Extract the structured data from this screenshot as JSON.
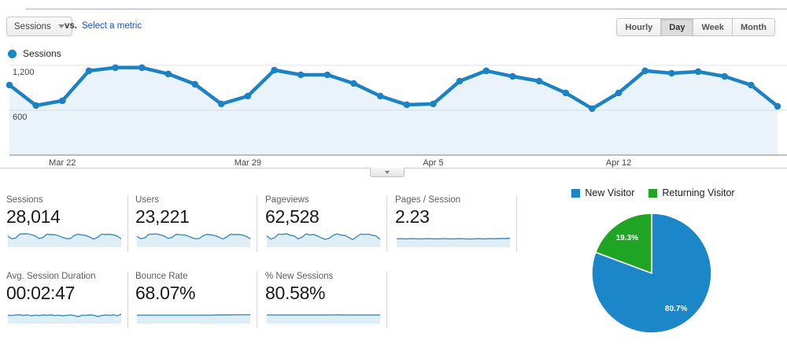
{
  "controls": {
    "metric_selector_value": "Sessions",
    "vs_label": "vs.",
    "select_metric_label": "Select a metric",
    "granularity": [
      "Hourly",
      "Day",
      "Week",
      "Month"
    ],
    "granularity_selected": "Day"
  },
  "legend": {
    "series_label": "Sessions"
  },
  "colors": {
    "line_blue": "#1d82c3",
    "area_fill": "#e9f3f9",
    "spark_line": "#3d8cbb",
    "spark_fill": "#dfedf7",
    "pie_blue": "#1b86c8",
    "pie_green": "#1fa523",
    "grid_light": "#e3e3e3",
    "grid_mid": "#cfdfeb",
    "axis_line": "#808080"
  },
  "chart_data": [
    {
      "type": "line",
      "title": "Sessions over time",
      "series_name": "Sessions",
      "x": [
        "Mar 20",
        "Mar 21",
        "Mar 22",
        "Mar 23",
        "Mar 24",
        "Mar 25",
        "Mar 26",
        "Mar 27",
        "Mar 28",
        "Mar 29",
        "Mar 30",
        "Mar 31",
        "Apr 1",
        "Apr 2",
        "Apr 3",
        "Apr 4",
        "Apr 5",
        "Apr 6",
        "Apr 7",
        "Apr 8",
        "Apr 9",
        "Apr 10",
        "Apr 11",
        "Apr 12",
        "Apr 13",
        "Apr 14",
        "Apr 15",
        "Apr 16",
        "Apr 17",
        "Apr 18"
      ],
      "values": [
        937,
        663,
        727,
        1127,
        1169,
        1169,
        1085,
        948,
        684,
        790,
        1137,
        1074,
        1074,
        958,
        790,
        674,
        684,
        990,
        1127,
        1053,
        990,
        832,
        621,
        832,
        1127,
        1095,
        1116,
        1053,
        937,
        653
      ],
      "ylim": [
        0,
        1263
      ],
      "grid": true,
      "yticks": [
        {
          "label": "1,200",
          "value": 1200
        },
        {
          "label": "600",
          "value": 600
        }
      ],
      "xticks": [
        {
          "label": "Mar 22",
          "index": 2
        },
        {
          "label": "Mar 29",
          "index": 9
        },
        {
          "label": "Apr 5",
          "index": 16
        },
        {
          "label": "Apr 12",
          "index": 23
        }
      ]
    },
    {
      "type": "pie",
      "title": "New vs Returning Visitors",
      "labels": [
        "New Visitor",
        "Returning Visitor"
      ],
      "values": [
        80.7,
        19.3
      ],
      "value_labels": [
        "80.7%",
        "19.3%"
      ],
      "colors": [
        "#1b86c8",
        "#1fa523"
      ],
      "legend_position": "top"
    }
  ],
  "scorecards": {
    "rows": [
      [
        {
          "label": "Sessions",
          "value": "28,014",
          "spark": [
            0.78,
            0.55,
            0.61,
            0.94,
            0.97,
            0.97,
            0.9,
            0.79,
            0.57,
            0.66,
            0.95,
            0.9,
            0.9,
            0.8,
            0.66,
            0.56,
            0.57,
            0.83,
            0.94,
            0.88,
            0.83,
            0.69,
            0.52,
            0.69,
            0.94,
            0.91,
            0.93,
            0.88,
            0.78,
            0.54
          ]
        },
        {
          "label": "Users",
          "value": "23,221",
          "spark": [
            0.75,
            0.56,
            0.62,
            0.92,
            0.95,
            0.96,
            0.88,
            0.77,
            0.58,
            0.67,
            0.93,
            0.89,
            0.88,
            0.79,
            0.65,
            0.55,
            0.58,
            0.82,
            0.93,
            0.87,
            0.82,
            0.68,
            0.53,
            0.7,
            0.93,
            0.9,
            0.92,
            0.86,
            0.76,
            0.55
          ]
        },
        {
          "label": "Pageviews",
          "value": "62,528",
          "spark": [
            0.8,
            0.52,
            0.64,
            0.95,
            0.92,
            0.98,
            0.85,
            0.8,
            0.54,
            0.68,
            0.96,
            0.88,
            0.91,
            0.78,
            0.62,
            0.5,
            0.6,
            0.85,
            0.96,
            0.86,
            0.84,
            0.66,
            0.48,
            0.72,
            0.95,
            0.92,
            0.94,
            0.85,
            0.79,
            0.5
          ]
        },
        {
          "label": "Pages / Session",
          "value": "2.23",
          "spark": [
            0.55,
            0.56,
            0.54,
            0.55,
            0.56,
            0.55,
            0.54,
            0.55,
            0.56,
            0.55,
            0.55,
            0.54,
            0.56,
            0.55,
            0.54,
            0.55,
            0.56,
            0.55,
            0.54,
            0.53,
            0.55,
            0.56,
            0.54,
            0.55,
            0.56,
            0.55,
            0.57,
            0.58,
            0.57,
            0.6
          ]
        }
      ],
      [
        {
          "label": "Avg. Session Duration",
          "value": "00:02:47",
          "spark": [
            0.55,
            0.52,
            0.56,
            0.58,
            0.53,
            0.57,
            0.5,
            0.55,
            0.52,
            0.56,
            0.54,
            0.57,
            0.52,
            0.55,
            0.5,
            0.53,
            0.56,
            0.52,
            0.42,
            0.55,
            0.53,
            0.57,
            0.54,
            0.44,
            0.52,
            0.56,
            0.53,
            0.58,
            0.5,
            0.62
          ]
        },
        {
          "label": "Bounce Rate",
          "value": "68.07%",
          "spark": [
            0.55,
            0.55,
            0.55,
            0.55,
            0.55,
            0.55,
            0.55,
            0.55,
            0.55,
            0.55,
            0.55,
            0.55,
            0.55,
            0.55,
            0.55,
            0.55,
            0.55,
            0.55,
            0.55,
            0.55,
            0.56,
            0.57,
            0.57,
            0.57,
            0.57,
            0.58,
            0.58,
            0.58,
            0.58,
            0.58
          ]
        },
        {
          "label": "% New Sessions",
          "value": "80.58%",
          "spark": [
            0.56,
            0.56,
            0.56,
            0.56,
            0.56,
            0.56,
            0.56,
            0.56,
            0.56,
            0.56,
            0.56,
            0.56,
            0.56,
            0.56,
            0.56,
            0.57,
            0.56,
            0.56,
            0.58,
            0.57,
            0.56,
            0.56,
            0.56,
            0.56,
            0.56,
            0.56,
            0.56,
            0.56,
            0.56,
            0.56
          ]
        }
      ]
    ]
  }
}
